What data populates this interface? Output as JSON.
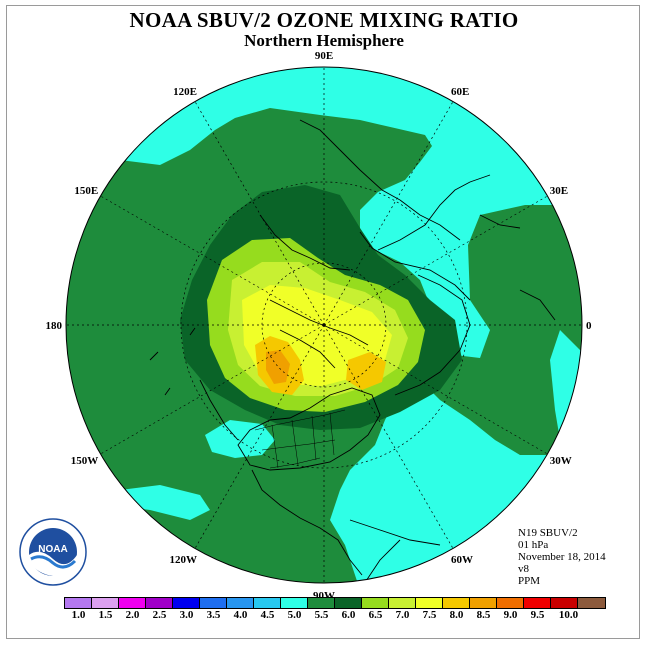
{
  "header": {
    "title": "NOAA SBUV/2 OZONE MIXING RATIO",
    "subtitle": "Northern Hemisphere"
  },
  "map": {
    "projection": "north-polar-stereographic",
    "longitude_labels": [
      {
        "text": "90E",
        "lon": 90
      },
      {
        "text": "60E",
        "lon": 60
      },
      {
        "text": "30E",
        "lon": 30
      },
      {
        "text": "0",
        "lon": 0
      },
      {
        "text": "30W",
        "lon": -30
      },
      {
        "text": "60W",
        "lon": -60
      },
      {
        "text": "90W",
        "lon": -90
      },
      {
        "text": "120W",
        "lon": -120
      },
      {
        "text": "150W",
        "lon": -150
      },
      {
        "text": "180",
        "lon": 180
      },
      {
        "text": "150E",
        "lon": 150
      },
      {
        "text": "120E",
        "lon": 120
      }
    ],
    "ocean_color": "#ffffff",
    "field_colors": {
      "c_4_5": "#2fffe6",
      "c_5_0": "#1e8c3c",
      "c_5_5": "#0a6428",
      "c_6_0": "#96dc1e",
      "c_6_5": "#c8f032",
      "c_7_0": "#f0ff28",
      "c_7_5": "#f5c800",
      "c_8_0": "#f0a000"
    }
  },
  "info": {
    "lines": [
      "N19 SBUV/2",
      "01 hPa",
      "November 18, 2014",
      "v8",
      "PPM"
    ]
  },
  "logo": {
    "text": "NOAA",
    "ring_text": "NATIONAL OCEANIC AND ATMOSPHERIC ADMINISTRATION · U.S. DEPARTMENT OF COMMERCE"
  },
  "colorbar": {
    "colors": [
      "#b478f0",
      "#dca0f0",
      "#f000f0",
      "#a000c8",
      "#0000f0",
      "#1e6ef0",
      "#2896f0",
      "#28c8f0",
      "#2fffe6",
      "#1e8c3c",
      "#0a6428",
      "#96dc1e",
      "#c8f032",
      "#f0ff28",
      "#f5c800",
      "#f0a000",
      "#f06e00",
      "#f00000",
      "#c80000",
      "#8c5a3c"
    ],
    "tick_labels": [
      "1.0",
      "1.5",
      "2.0",
      "2.5",
      "3.0",
      "3.5",
      "4.0",
      "4.5",
      "5.0",
      "5.5",
      "6.0",
      "6.5",
      "7.0",
      "7.5",
      "8.0",
      "8.5",
      "9.0",
      "9.5",
      "10.0"
    ]
  }
}
